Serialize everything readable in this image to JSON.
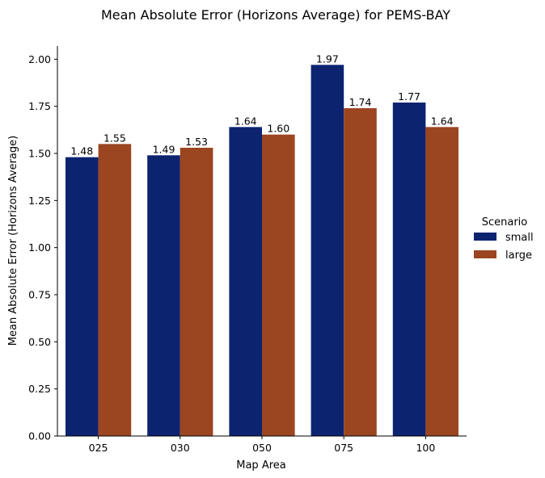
{
  "chart_data": {
    "type": "bar",
    "title": "Mean Absolute Error (Horizons Average) for PEMS-BAY",
    "xlabel": "Map Area",
    "ylabel": "Mean Absolute Error (Horizons Average)",
    "categories": [
      "025",
      "030",
      "050",
      "075",
      "100"
    ],
    "series": [
      {
        "name": "small",
        "color": "#0c2370",
        "values": [
          1.48,
          1.49,
          1.64,
          1.97,
          1.77
        ],
        "labels": [
          "1.48",
          "1.49",
          "1.64",
          "1.97",
          "1.77"
        ]
      },
      {
        "name": "large",
        "color": "#9b4521",
        "values": [
          1.55,
          1.53,
          1.6,
          1.74,
          1.64
        ],
        "labels": [
          "1.55",
          "1.53",
          "1.60",
          "1.74",
          "1.64"
        ]
      }
    ],
    "ylim": [
      0,
      2.07
    ],
    "yticks": [
      "0.00",
      "0.25",
      "0.50",
      "0.75",
      "1.00",
      "1.25",
      "1.50",
      "1.75",
      "2.00"
    ],
    "legend": {
      "title": "Scenario",
      "position": "right"
    },
    "grid": false
  }
}
